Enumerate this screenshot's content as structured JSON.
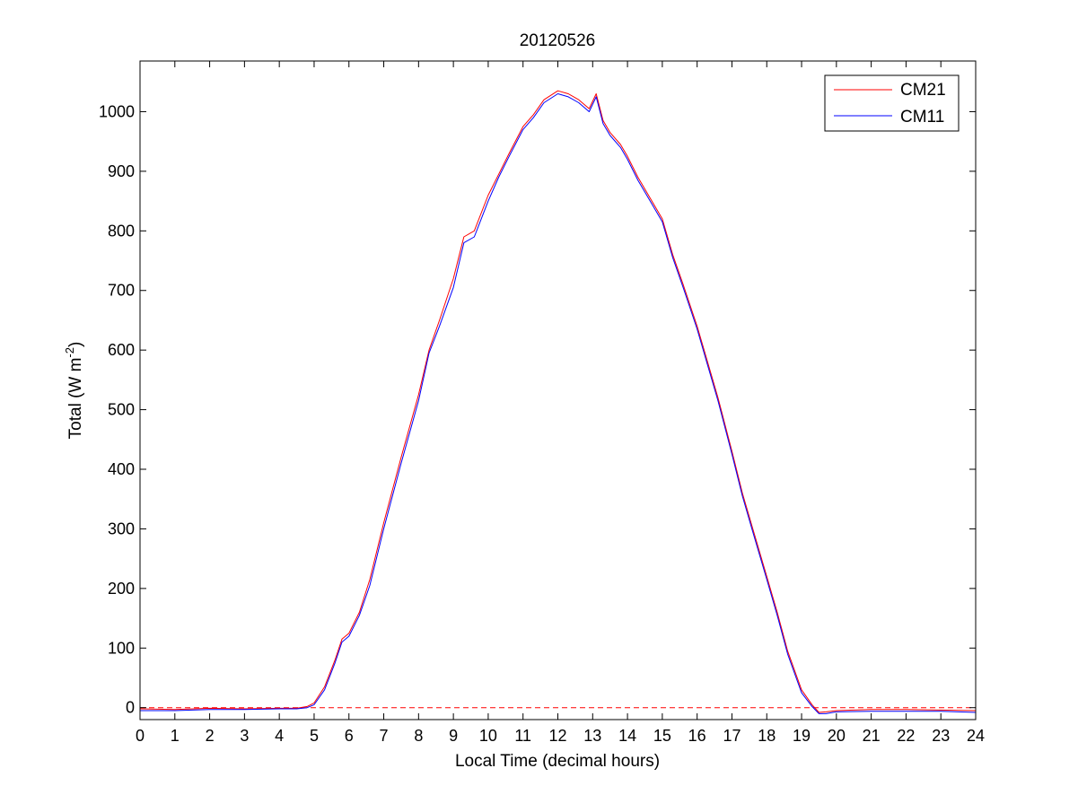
{
  "chart_data": {
    "type": "line",
    "title": "20120526",
    "xlabel": "Local Time (decimal hours)",
    "ylabel_main": "Total (W m",
    "ylabel_exp": "-2",
    "ylabel_close": ")",
    "xlim": [
      0,
      24
    ],
    "ylim": [
      -20,
      1085
    ],
    "xticks": [
      0,
      1,
      2,
      3,
      4,
      5,
      6,
      7,
      8,
      9,
      10,
      11,
      12,
      13,
      14,
      15,
      16,
      17,
      18,
      19,
      20,
      21,
      22,
      23,
      24
    ],
    "xtick_labels": [
      "0",
      "1",
      "2",
      "3",
      "4",
      "5",
      "6",
      "7",
      "8",
      "9",
      "10",
      "11",
      "12",
      "13",
      "14",
      "15",
      "16",
      "17",
      "18",
      "19",
      "20",
      "21",
      "22",
      "23",
      "24"
    ],
    "yticks": [
      0,
      100,
      200,
      300,
      400,
      500,
      600,
      700,
      800,
      900,
      1000
    ],
    "ytick_labels": [
      "0",
      "100",
      "200",
      "300",
      "400",
      "500",
      "600",
      "700",
      "800",
      "900",
      "1000"
    ],
    "grid": false,
    "legend_position": "top-right",
    "reference_line": {
      "y": 0,
      "style": "dashed",
      "color": "#ff0000"
    },
    "series": [
      {
        "name": "CM21",
        "color": "#ff0000",
        "x": [
          0,
          1,
          2,
          3,
          4,
          4.5,
          4.8,
          5,
          5.3,
          5.6,
          5.8,
          6,
          6.3,
          6.6,
          7,
          7.5,
          8,
          8.3,
          8.6,
          9,
          9.3,
          9.6,
          10,
          10.3,
          10.6,
          11,
          11.3,
          11.6,
          12,
          12.3,
          12.6,
          12.9,
          13.1,
          13.3,
          13.5,
          13.8,
          14,
          14.3,
          14.6,
          15,
          15.3,
          15.6,
          16,
          16.3,
          16.6,
          17,
          17.3,
          17.6,
          18,
          18.3,
          18.6,
          19,
          19.3,
          19.5,
          19.7,
          20,
          21,
          22,
          23,
          24
        ],
        "y": [
          -2,
          -3,
          -1,
          -2,
          -1,
          -1,
          2,
          8,
          35,
          80,
          115,
          125,
          160,
          215,
          310,
          420,
          525,
          600,
          650,
          720,
          790,
          800,
          860,
          895,
          930,
          975,
          995,
          1020,
          1035,
          1030,
          1020,
          1005,
          1030,
          985,
          965,
          945,
          925,
          890,
          860,
          820,
          760,
          710,
          640,
          580,
          520,
          430,
          360,
          300,
          220,
          160,
          95,
          30,
          5,
          -8,
          -7,
          -5,
          -3,
          -3,
          -4,
          -5
        ]
      },
      {
        "name": "CM11",
        "color": "#0000ff",
        "x": [
          0,
          1,
          2,
          3,
          4,
          4.5,
          4.8,
          5,
          5.3,
          5.6,
          5.8,
          6,
          6.3,
          6.6,
          7,
          7.5,
          8,
          8.3,
          8.6,
          9,
          9.3,
          9.6,
          10,
          10.3,
          10.6,
          11,
          11.3,
          11.6,
          12,
          12.3,
          12.6,
          12.9,
          13.1,
          13.3,
          13.5,
          13.8,
          14,
          14.3,
          14.6,
          15,
          15.3,
          15.6,
          16,
          16.3,
          16.6,
          17,
          17.3,
          17.6,
          18,
          18.3,
          18.6,
          19,
          19.3,
          19.5,
          19.7,
          20,
          21,
          22,
          23,
          24
        ],
        "y": [
          -5,
          -5,
          -3,
          -3,
          -2,
          -2,
          0,
          5,
          30,
          75,
          110,
          120,
          155,
          205,
          300,
          410,
          515,
          595,
          640,
          705,
          780,
          790,
          850,
          890,
          925,
          970,
          990,
          1015,
          1030,
          1025,
          1015,
          1000,
          1025,
          980,
          960,
          940,
          920,
          885,
          855,
          815,
          755,
          705,
          635,
          575,
          515,
          425,
          355,
          295,
          215,
          155,
          90,
          25,
          2,
          -10,
          -10,
          -7,
          -6,
          -6,
          -6,
          -8
        ]
      }
    ]
  }
}
